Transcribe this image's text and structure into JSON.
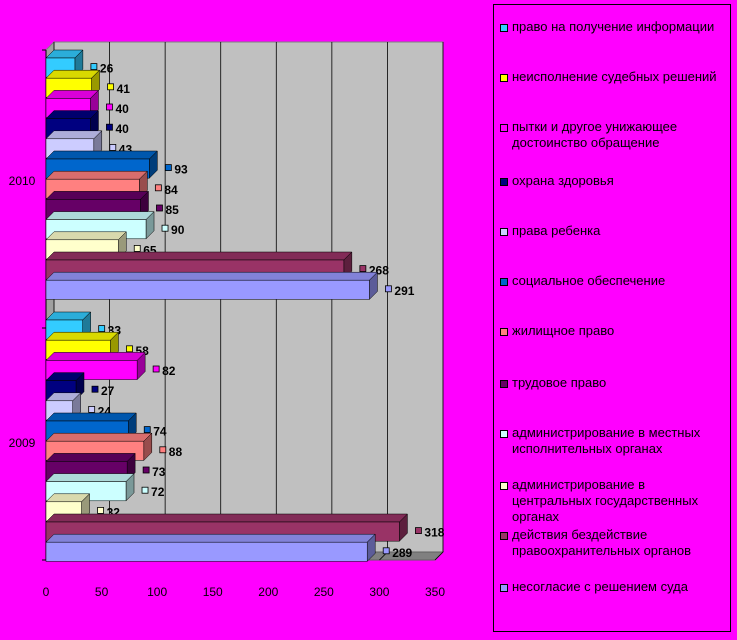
{
  "chart_data": {
    "type": "bar",
    "orientation": "horizontal",
    "categories": [
      "2010",
      "2009"
    ],
    "x_ticks": [
      "0",
      "50",
      "100",
      "150",
      "200",
      "250",
      "300",
      "350"
    ],
    "xlim": [
      0,
      350
    ],
    "grid": true,
    "legend_position": "right",
    "series": [
      {
        "name": "право на получение информации",
        "color": "#33ccff",
        "values": [
          26,
          33
        ]
      },
      {
        "name": "неисполнение судебных решений",
        "color": "#ffff00",
        "values": [
          41,
          58
        ]
      },
      {
        "name": "пытки и другое унижающее достоинство обращение",
        "color": "#ff00ff",
        "values": [
          40,
          82
        ]
      },
      {
        "name": "охрана здоровья",
        "color": "#000080",
        "values": [
          40,
          27
        ]
      },
      {
        "name": "права ребенка",
        "color": "#ccccff",
        "values": [
          43,
          24
        ]
      },
      {
        "name": "социальное обеспечение",
        "color": "#0066cc",
        "values": [
          93,
          74
        ]
      },
      {
        "name": "жилищное право",
        "color": "#ff8080",
        "values": [
          84,
          88
        ]
      },
      {
        "name": "трудовое право",
        "color": "#660066",
        "values": [
          85,
          73
        ]
      },
      {
        "name": "администрирование в местных исполнительных органах",
        "color": "#ccffff",
        "values": [
          90,
          72
        ]
      },
      {
        "name": "администрирование в центральных государственных органах",
        "color": "#ffffcc",
        "values": [
          65,
          32
        ]
      },
      {
        "name": "действия бездействие правоохранительных органов",
        "color": "#993366",
        "values": [
          268,
          318
        ]
      },
      {
        "name": "несогласие с решением суда",
        "color": "#9999ff",
        "values": [
          291,
          289
        ]
      }
    ]
  }
}
